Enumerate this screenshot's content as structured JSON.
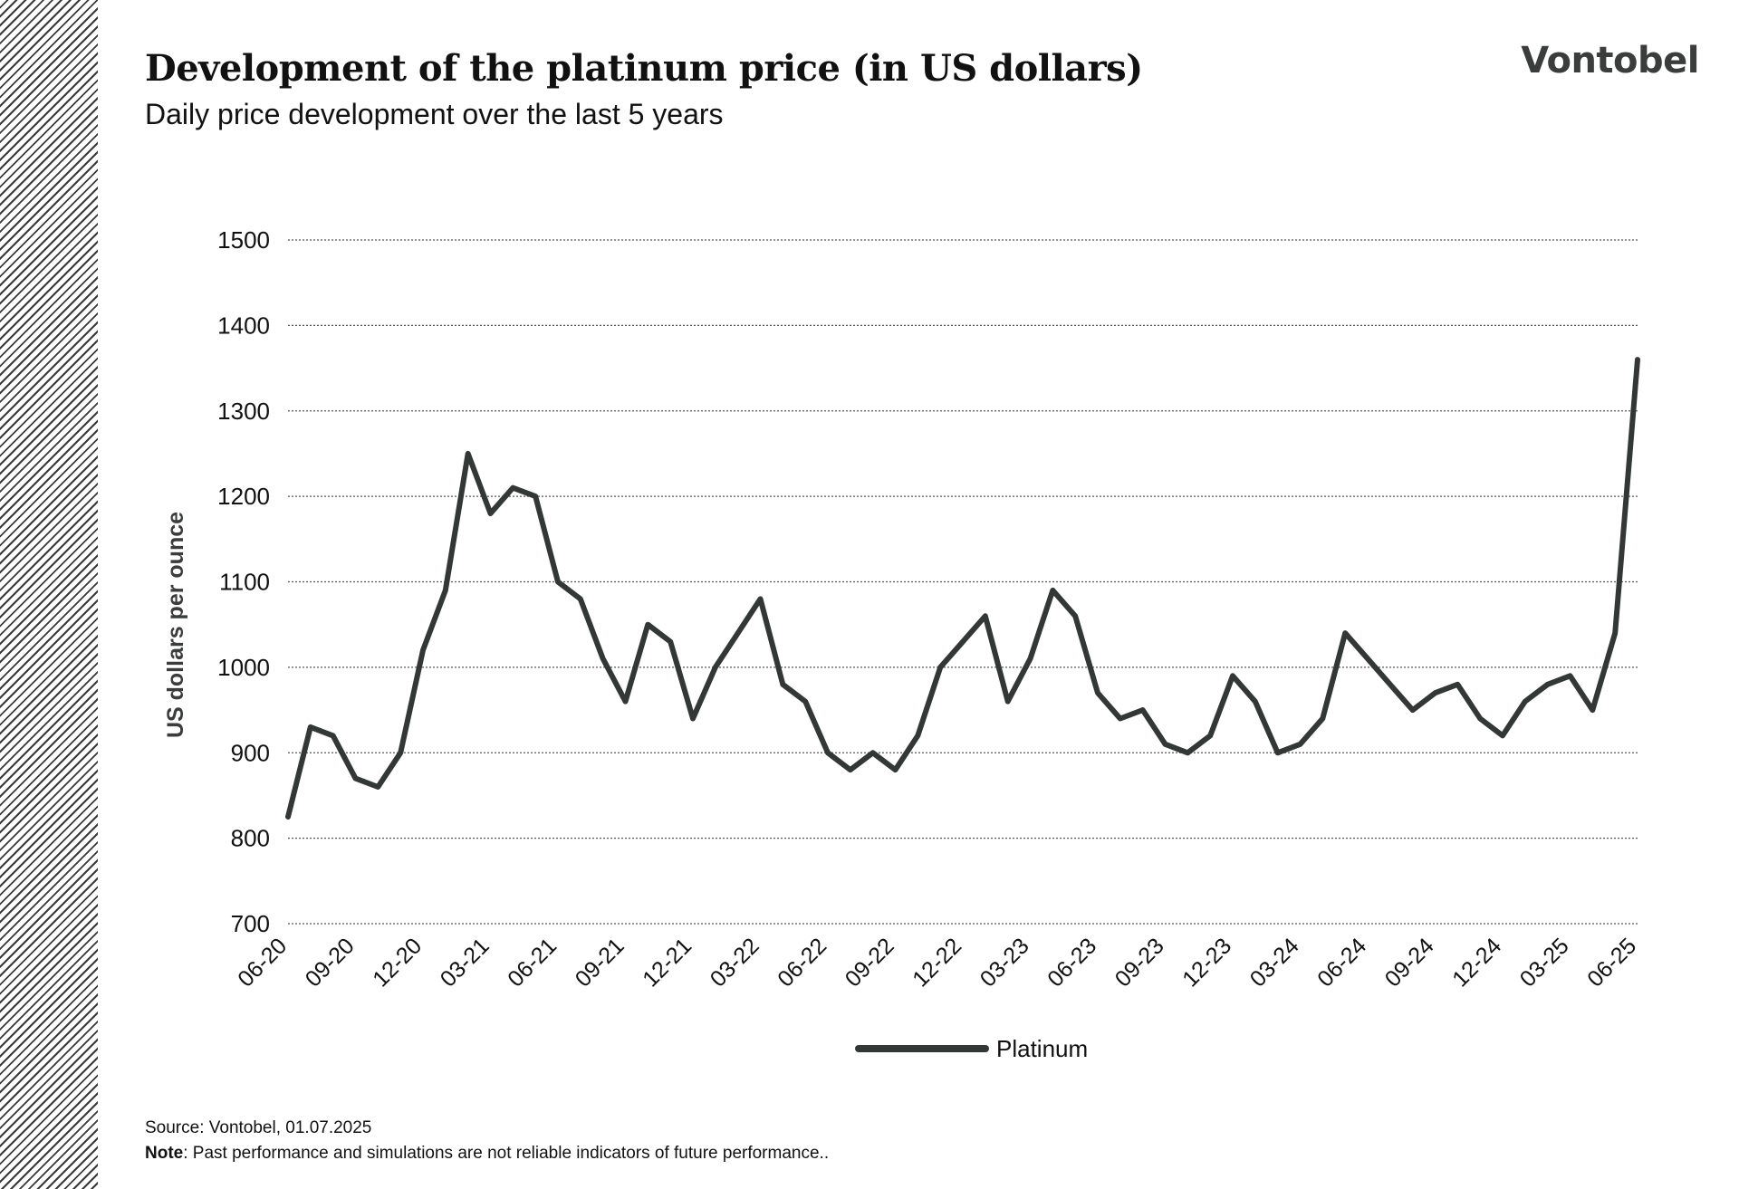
{
  "header": {
    "title": "Development of the platinum price (in US dollars)",
    "subtitle": "Daily price development over the last 5 years",
    "logo_text": "Vontobel"
  },
  "footer": {
    "source": "Source: Vontobel, 01.07.2025",
    "note_label": "Note",
    "note_text": ": Past performance and simulations are not reliable indicators of future performance.."
  },
  "colors": {
    "line": "#333735",
    "grid": "#555555",
    "text": "#111111"
  },
  "chart_data": {
    "type": "line",
    "ylabel": "US dollars per ounce",
    "ylim": [
      700,
      1500
    ],
    "yticks": [
      700,
      800,
      900,
      1000,
      1100,
      1200,
      1300,
      1400,
      1500
    ],
    "xlim": [
      "06-20",
      "06-25"
    ],
    "xticks": [
      "06-20",
      "09-20",
      "12-20",
      "03-21",
      "06-21",
      "09-21",
      "12-21",
      "03-22",
      "06-22",
      "09-22",
      "12-22",
      "03-23",
      "06-23",
      "09-23",
      "12-23",
      "03-24",
      "06-24",
      "09-24",
      "12-24",
      "03-25",
      "06-25"
    ],
    "grid": true,
    "legend_position": "bottom-center",
    "series": [
      {
        "name": "Platinum",
        "x": [
          "06-20",
          "07-20",
          "08-20",
          "09-20",
          "10-20",
          "11-20",
          "12-20",
          "01-21",
          "02-21",
          "03-21",
          "04-21",
          "05-21",
          "06-21",
          "07-21",
          "08-21",
          "09-21",
          "10-21",
          "11-21",
          "12-21",
          "01-22",
          "02-22",
          "03-22",
          "04-22",
          "05-22",
          "06-22",
          "07-22",
          "08-22",
          "09-22",
          "10-22",
          "11-22",
          "12-22",
          "01-23",
          "02-23",
          "03-23",
          "04-23",
          "05-23",
          "06-23",
          "07-23",
          "08-23",
          "09-23",
          "10-23",
          "11-23",
          "12-23",
          "01-24",
          "02-24",
          "03-24",
          "04-24",
          "05-24",
          "06-24",
          "07-24",
          "08-24",
          "09-24",
          "10-24",
          "11-24",
          "12-24",
          "01-25",
          "02-25",
          "03-25",
          "04-25",
          "05-25",
          "06-25"
        ],
        "y": [
          825,
          930,
          920,
          870,
          860,
          900,
          1020,
          1090,
          1250,
          1180,
          1210,
          1200,
          1100,
          1080,
          1010,
          960,
          1050,
          1030,
          940,
          1000,
          1040,
          1080,
          980,
          960,
          900,
          880,
          900,
          880,
          920,
          1000,
          1030,
          1060,
          960,
          1010,
          1090,
          1060,
          970,
          940,
          950,
          910,
          900,
          920,
          990,
          960,
          900,
          910,
          940,
          1040,
          1010,
          980,
          950,
          970,
          980,
          940,
          920,
          960,
          980,
          990,
          950,
          1040,
          1360
        ]
      }
    ]
  }
}
